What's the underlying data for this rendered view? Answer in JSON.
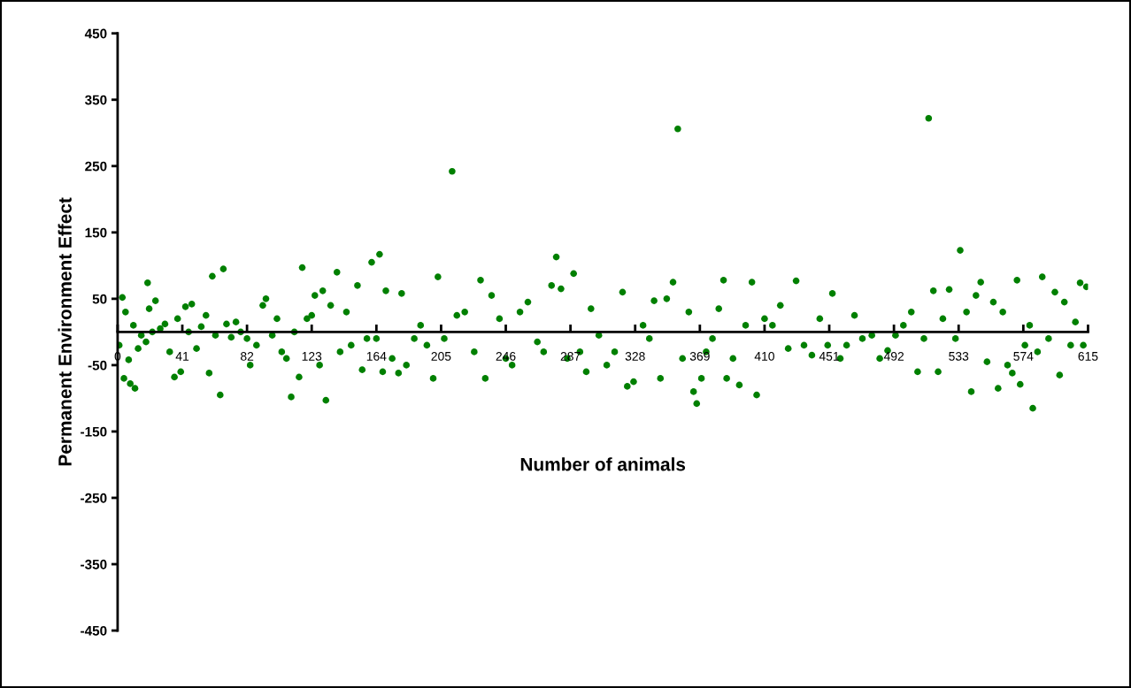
{
  "chart_data": {
    "type": "scatter",
    "xlabel": "Number of animals",
    "ylabel": "Permanent Environment Effect",
    "xlim": [
      0,
      615
    ],
    "xticks": [
      0,
      41,
      82,
      123,
      164,
      205,
      246,
      287,
      328,
      369,
      410,
      451,
      492,
      533,
      574,
      615
    ],
    "ylim": [
      -450,
      450
    ],
    "yticks": [
      -450,
      -350,
      -250,
      -150,
      -50,
      50,
      150,
      250,
      350,
      450
    ],
    "grid": false,
    "legend": false,
    "marker": "circle",
    "series": [
      {
        "color": "#008000",
        "x": [
          1,
          3,
          4,
          5,
          7,
          8,
          10,
          11,
          13,
          15,
          18,
          19,
          20,
          22,
          24,
          27,
          30,
          33,
          36,
          38,
          40,
          43,
          45,
          47,
          50,
          53,
          56,
          58,
          60,
          62,
          65,
          67,
          69,
          72,
          75,
          78,
          82,
          84,
          88,
          92,
          94,
          98,
          101,
          104,
          107,
          110,
          112,
          115,
          117,
          120,
          123,
          125,
          128,
          130,
          132,
          135,
          139,
          141,
          145,
          148,
          152,
          155,
          158,
          161,
          164,
          166,
          168,
          170,
          174,
          178,
          180,
          183,
          188,
          192,
          196,
          200,
          203,
          207,
          212,
          215,
          220,
          226,
          230,
          233,
          237,
          242,
          246,
          250,
          255,
          260,
          266,
          270,
          275,
          278,
          281,
          285,
          289,
          293,
          297,
          300,
          305,
          310,
          315,
          320,
          323,
          327,
          333,
          337,
          340,
          344,
          348,
          352,
          355,
          358,
          362,
          365,
          367,
          370,
          373,
          377,
          381,
          384,
          386,
          390,
          394,
          398,
          402,
          405,
          410,
          415,
          420,
          425,
          430,
          435,
          440,
          445,
          450,
          453,
          458,
          462,
          467,
          472,
          478,
          483,
          488,
          493,
          498,
          503,
          507,
          511,
          514,
          517,
          520,
          523,
          527,
          531,
          534,
          538,
          541,
          544,
          547,
          551,
          555,
          558,
          561,
          564,
          567,
          570,
          572,
          575,
          578,
          580,
          583,
          586,
          590,
          594,
          597,
          600,
          604,
          607,
          610,
          612,
          614
        ],
        "values": [
          -20,
          52,
          -70,
          30,
          -42,
          -78,
          10,
          -85,
          -25,
          -5,
          -15,
          74,
          35,
          0,
          47,
          5,
          12,
          -30,
          -68,
          20,
          -60,
          38,
          0,
          42,
          -25,
          8,
          25,
          -62,
          84,
          -5,
          -95,
          95,
          12,
          -8,
          15,
          0,
          -10,
          -50,
          -20,
          40,
          50,
          -5,
          20,
          -30,
          -40,
          -98,
          0,
          -68,
          97,
          20,
          25,
          55,
          -50,
          62,
          -103,
          40,
          90,
          -30,
          30,
          -20,
          70,
          -57,
          -10,
          105,
          -10,
          117,
          -60,
          62,
          -40,
          -62,
          58,
          -50,
          -10,
          10,
          -20,
          -70,
          83,
          -10,
          242,
          25,
          30,
          -30,
          78,
          -70,
          55,
          20,
          -40,
          -50,
          30,
          45,
          -15,
          -30,
          70,
          113,
          65,
          -40,
          88,
          -30,
          -60,
          35,
          -5,
          -50,
          -30,
          60,
          -82,
          -75,
          10,
          -10,
          47,
          -70,
          50,
          75,
          306,
          -40,
          30,
          -90,
          -108,
          -70,
          -30,
          -10,
          35,
          78,
          -70,
          -40,
          -80,
          10,
          75,
          -95,
          20,
          10,
          40,
          -25,
          77,
          -20,
          -35,
          20,
          -20,
          58,
          -40,
          -20,
          25,
          -10,
          -5,
          -40,
          -28,
          -5,
          10,
          30,
          -60,
          -10,
          322,
          62,
          -60,
          20,
          64,
          -10,
          123,
          30,
          -90,
          55,
          75,
          -45,
          45,
          -85,
          30,
          -50,
          -62,
          78,
          -79,
          -20,
          10,
          -115,
          -30,
          83,
          -10,
          60,
          -65,
          45,
          -20,
          15,
          74,
          -20,
          68
        ]
      }
    ]
  }
}
